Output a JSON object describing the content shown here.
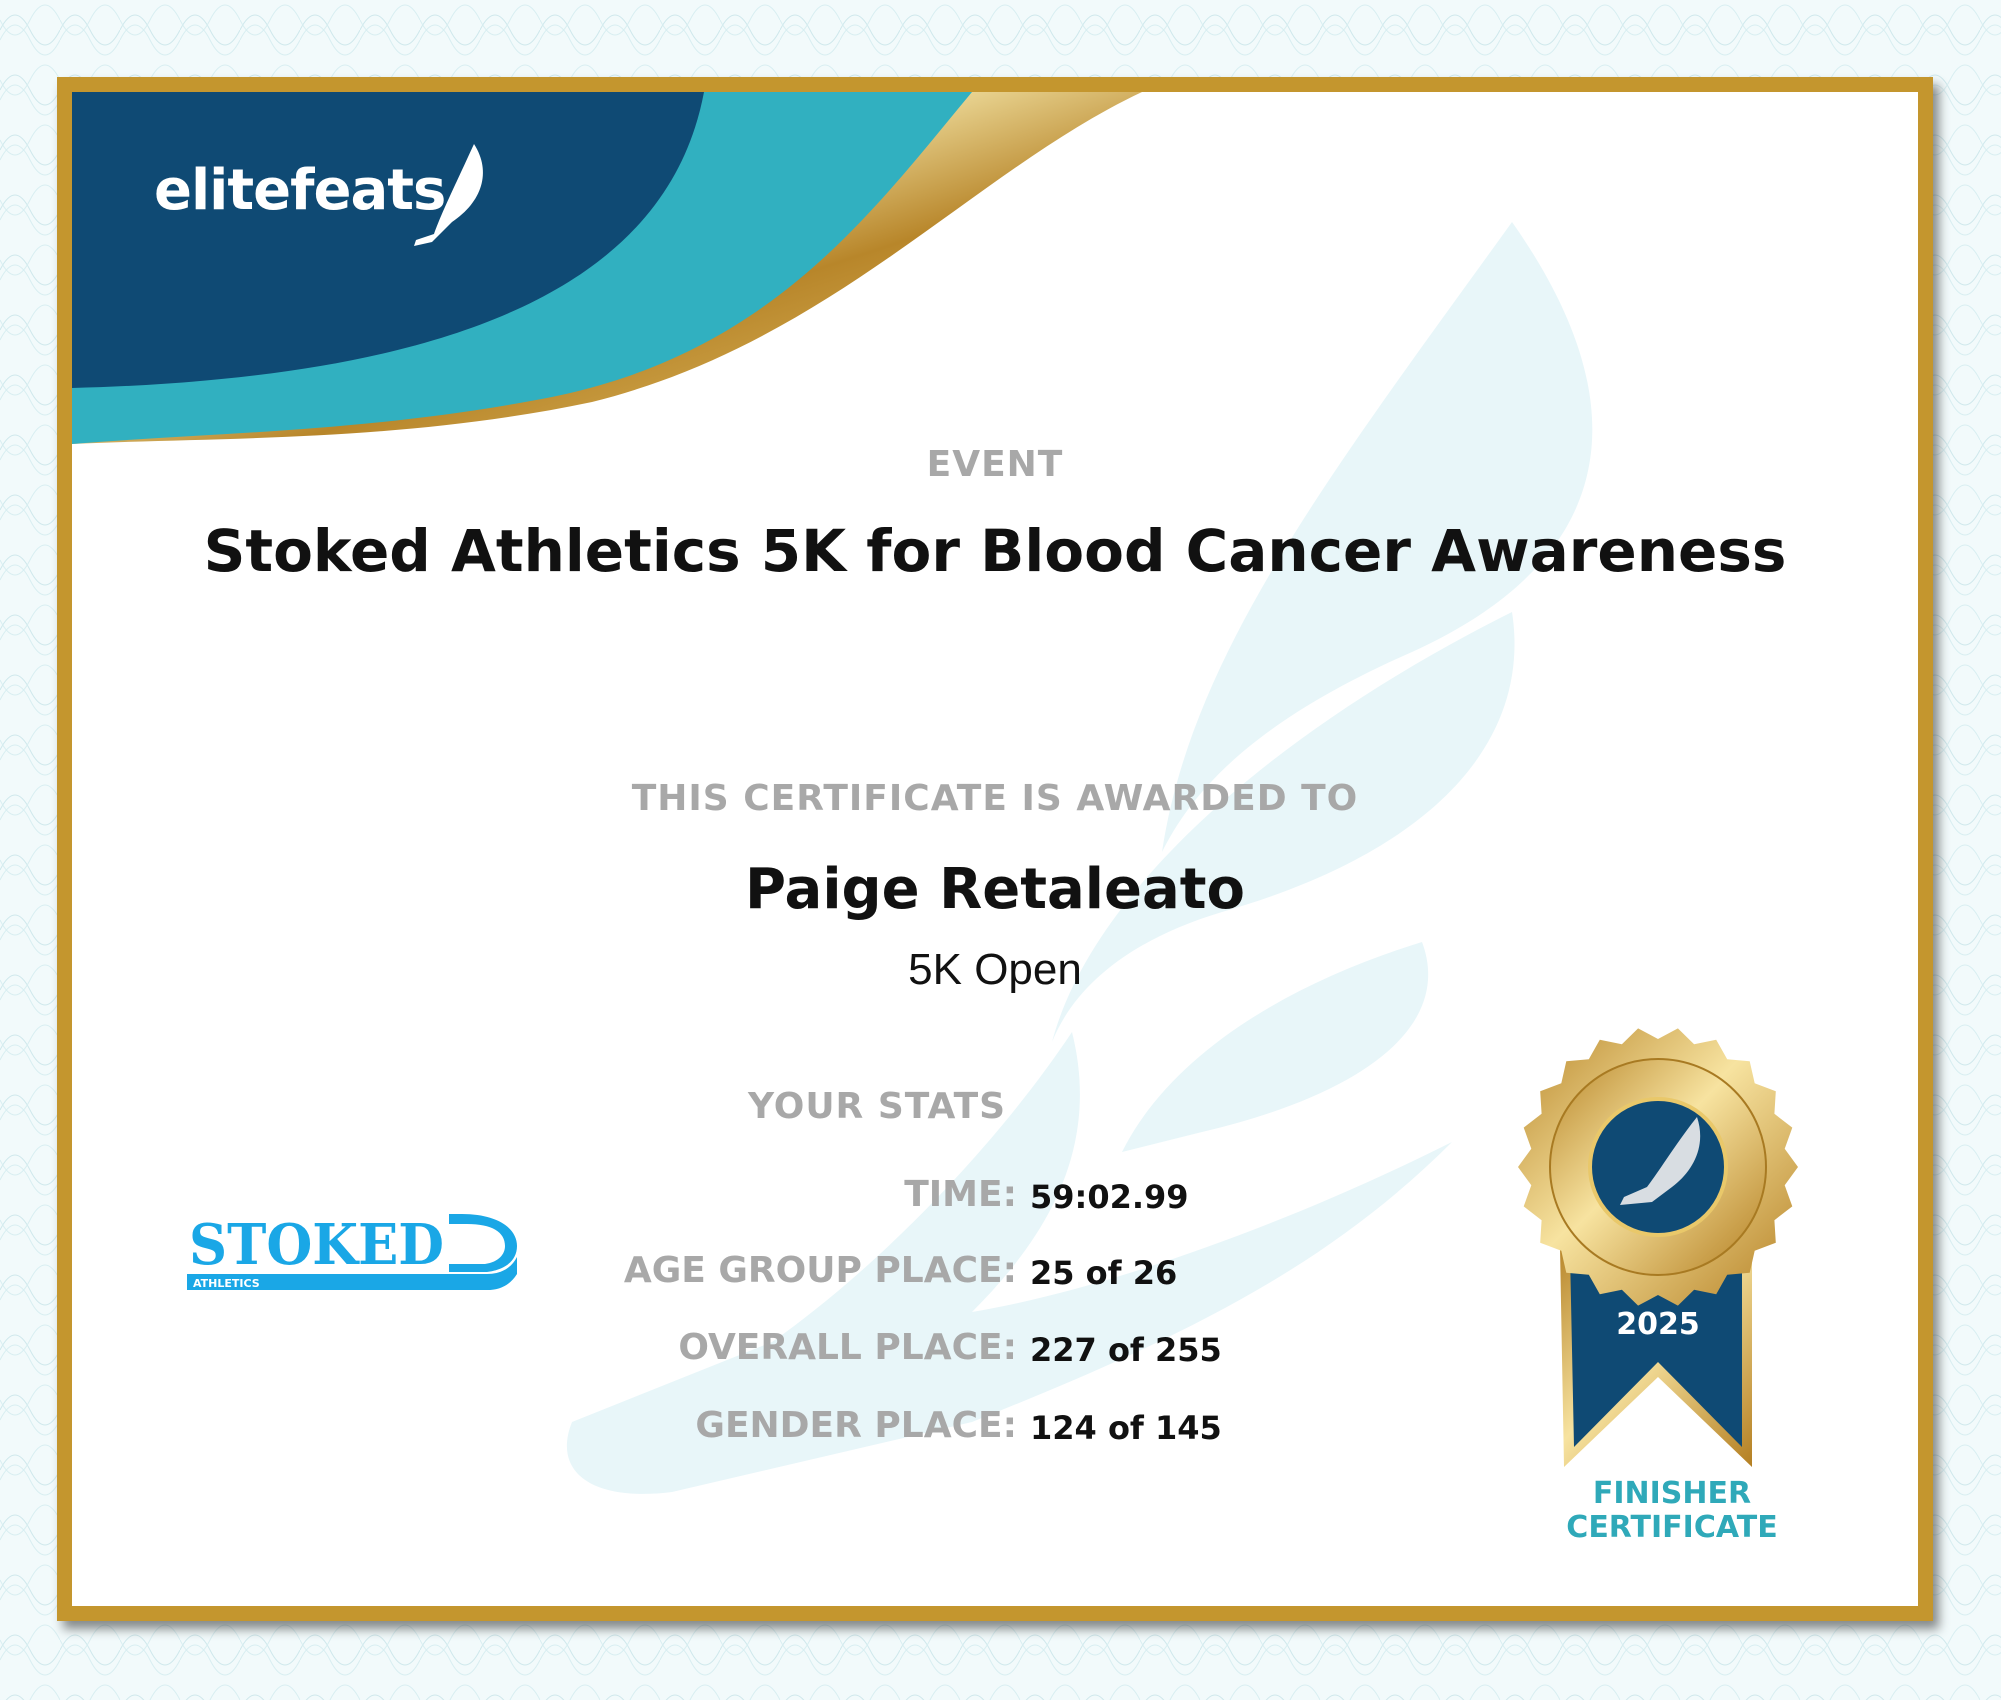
{
  "brand": {
    "name": "elitefeats",
    "icon": "winged-foot-icon"
  },
  "event": {
    "label": "EVENT",
    "title": "Stoked Athletics 5K for Blood Cancer Awareness"
  },
  "award": {
    "label": "THIS CERTIFICATE IS AWARDED TO",
    "name": "Paige Retaleato",
    "division": "5K Open"
  },
  "stats": {
    "label": "YOUR STATS",
    "rows": [
      {
        "key": "TIME:",
        "value": "59:02.99"
      },
      {
        "key": "AGE GROUP PLACE:",
        "value": "25 of 26"
      },
      {
        "key": "OVERALL PLACE:",
        "value": "227 of 255"
      },
      {
        "key": "GENDER PLACE:",
        "value": "124 of 145"
      }
    ]
  },
  "sponsor": {
    "name": "STOKED",
    "sub": "ATHLETICS"
  },
  "medal": {
    "year": "2025",
    "caption_line1": "FINISHER",
    "caption_line2": "CERTIFICATE"
  },
  "colors": {
    "navy": "#0f4a74",
    "teal": "#31b0c0",
    "gold": "#c4962e",
    "label_gray": "#a8a8a8",
    "sponsor_blue": "#1aa7e6"
  }
}
